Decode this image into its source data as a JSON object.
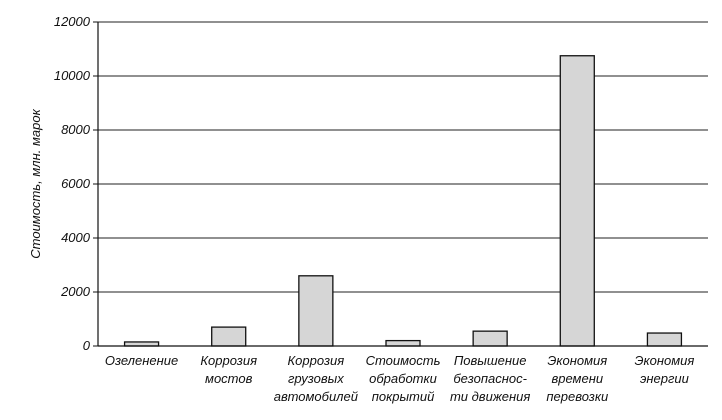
{
  "chart_data": {
    "type": "bar",
    "title": "",
    "xlabel": "",
    "ylabel": "Стоимость, млн. марок",
    "ylim": [
      0,
      12000
    ],
    "yticks": [
      "0",
      "2000",
      "4000",
      "6000",
      "8000",
      "10000",
      "12000"
    ],
    "grid": true,
    "legend": "none",
    "bar_fill": "#d6d6d6",
    "categories": [
      [
        "Озеленение"
      ],
      [
        "Коррозия",
        "мостов"
      ],
      [
        "Коррозия",
        "грузовых",
        "автомобилей"
      ],
      [
        "Стоимость",
        "обработки",
        "покрытий"
      ],
      [
        "Повышение",
        "безопаснос-",
        "ти движения"
      ],
      [
        "Экономия",
        "времени",
        "перевозки"
      ],
      [
        "Экономия",
        "энергии"
      ]
    ],
    "values": [
      150,
      700,
      2600,
      200,
      550,
      10750,
      480
    ]
  }
}
